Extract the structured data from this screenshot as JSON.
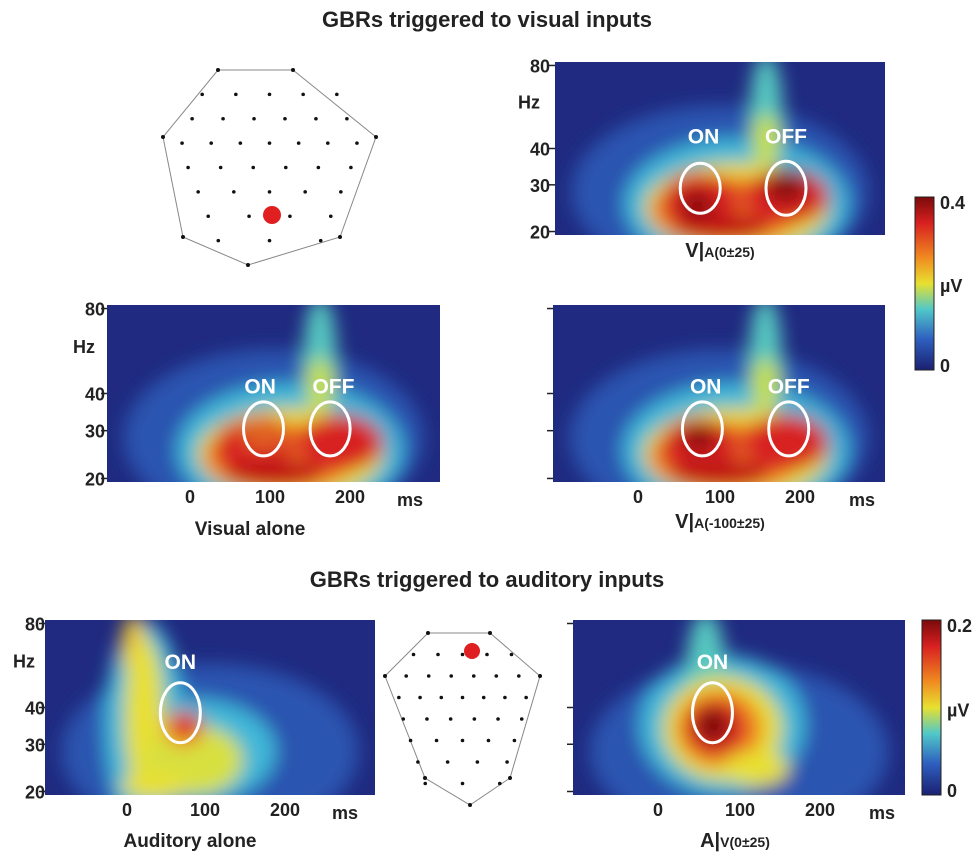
{
  "figure": {
    "titles": [
      "GBRs triggered to visual inputs",
      "GBRs triggered to auditory inputs"
    ],
    "panels": [
      {
        "y_ticks": [
          "80",
          "40",
          "30",
          "20"
        ],
        "y_unit": "Hz",
        "caption_main": "V|",
        "caption_sub": "A(0±25)",
        "annotations": [
          "ON",
          "OFF"
        ]
      },
      {
        "y_ticks": [
          "80",
          "40",
          "30",
          "20"
        ],
        "y_unit": "Hz",
        "x_ticks": [
          "0",
          "100",
          "200"
        ],
        "x_unit": "ms",
        "caption": "Visual alone",
        "annotations": [
          "ON",
          "OFF"
        ]
      },
      {
        "x_ticks": [
          "0",
          "100",
          "200"
        ],
        "x_unit": "ms",
        "caption_main": "V|",
        "caption_sub": "A(-100±25)",
        "annotations": [
          "ON",
          "OFF"
        ]
      },
      {
        "y_ticks": [
          "80",
          "40",
          "30",
          "20"
        ],
        "y_unit": "Hz",
        "x_ticks": [
          "0",
          "100",
          "200"
        ],
        "x_unit": "ms",
        "caption": "Auditory alone",
        "annotations": [
          "ON"
        ]
      },
      {
        "x_ticks": [
          "0",
          "100",
          "200"
        ],
        "x_unit": "ms",
        "caption_main": "A|",
        "caption_sub": "V(0±25)",
        "annotations": [
          "ON"
        ]
      }
    ],
    "colorbars": [
      {
        "max": "0.4",
        "unit": "µV",
        "min": "0"
      },
      {
        "max": "0.2",
        "unit": "µV",
        "min": "0"
      }
    ]
  }
}
